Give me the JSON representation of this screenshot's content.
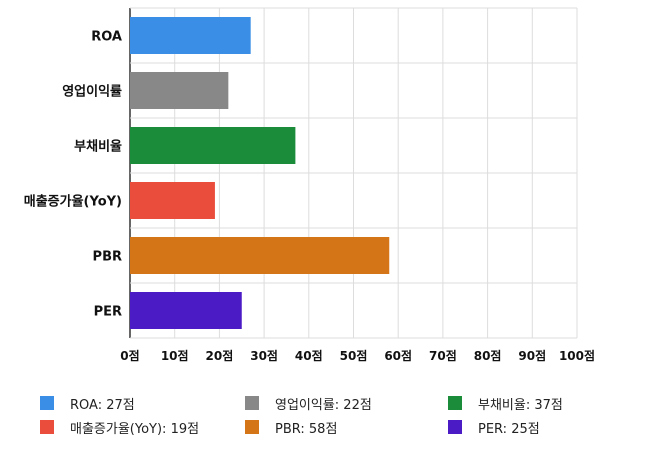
{
  "chart_data": {
    "type": "bar",
    "orientation": "horizontal",
    "categories": [
      "ROA",
      "영업이익률",
      "부채비율",
      "매출증가율(YoY)",
      "PBR",
      "PER"
    ],
    "values": [
      27,
      22,
      37,
      19,
      58,
      25
    ],
    "colors": [
      "#3a8ee6",
      "#888888",
      "#1a8c3a",
      "#ea4d3c",
      "#d47518",
      "#4b1cc6"
    ],
    "xlim": [
      0,
      100
    ],
    "xticks": [
      "0점",
      "10점",
      "20점",
      "30점",
      "40점",
      "50점",
      "60점",
      "70점",
      "80점",
      "90점",
      "100점"
    ],
    "grid": true,
    "legend_position": "bottom",
    "legend": [
      "ROA: 27점",
      "영업이익률: 22점",
      "부채비율: 37점",
      "매출증가율(YoY): 19점",
      "PBR: 58점",
      "PER: 25점"
    ]
  }
}
